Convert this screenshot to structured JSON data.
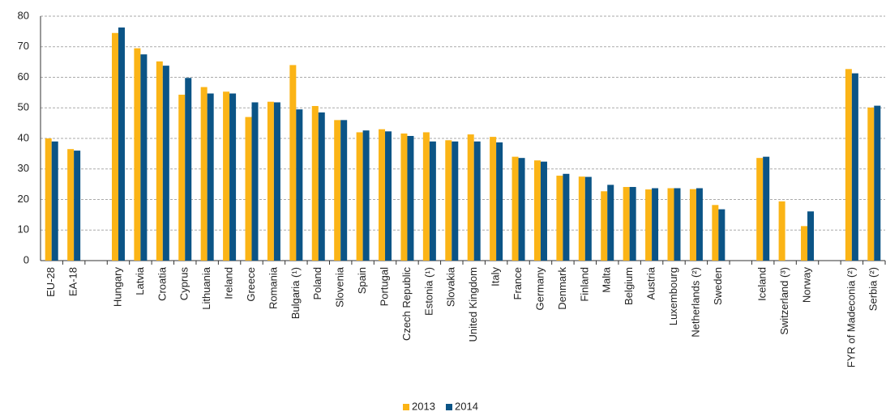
{
  "chart_data": {
    "type": "bar",
    "categories": [
      "EU-28",
      "EA-18",
      null,
      "Hungary",
      "Latvia",
      "Croatia",
      "Cyprus",
      "Lithuania",
      "Ireland",
      "Greece",
      "Romania",
      "Bulgaria (¹)",
      "Poland",
      "Slovenia",
      "Spain",
      "Portugal",
      "Czech Republic",
      "Estonia (¹)",
      "Slovakia",
      "United Kingdom",
      "Italy",
      "France",
      "Germany",
      "Denmark",
      "Finland",
      "Malta",
      "Belgium",
      "Austria",
      "Luxembourg",
      "Netherlands (²)",
      "Sweden",
      null,
      "Iceland",
      "Switzerland (³)",
      "Norway",
      null,
      "FYR of Madeconia (²)",
      "Serbia (²)"
    ],
    "series": [
      {
        "name": "2013",
        "color": "#fbb416",
        "values": [
          40,
          36.5,
          null,
          74.5,
          69.5,
          65.2,
          54.3,
          56.8,
          55.3,
          47,
          52,
          64,
          50.6,
          46,
          42,
          43,
          41.6,
          42,
          39.4,
          41.3,
          40.5,
          34,
          32.8,
          27.8,
          27.5,
          22.7,
          24.1,
          23.3,
          23.7,
          23.4,
          18.2,
          null,
          33.6,
          19.4,
          11.3,
          null,
          62.7,
          50.1
        ]
      },
      {
        "name": "2014",
        "color": "#0b5486",
        "values": [
          39,
          36,
          null,
          76.3,
          67.5,
          63.8,
          59.8,
          54.7,
          54.7,
          51.8,
          51.8,
          49.5,
          48.5,
          46,
          42.6,
          42.3,
          40.8,
          39,
          39,
          39,
          38.7,
          33.6,
          32.4,
          28.4,
          27.4,
          24.8,
          24.1,
          23.7,
          23.7,
          23.7,
          16.8,
          null,
          34,
          null,
          16.1,
          null,
          61.3,
          50.7
        ]
      }
    ],
    "ylim": [
      0,
      80
    ],
    "yticks": [
      0,
      10,
      20,
      30,
      40,
      50,
      60,
      70,
      80
    ],
    "grid": true,
    "legend": "bottom"
  }
}
